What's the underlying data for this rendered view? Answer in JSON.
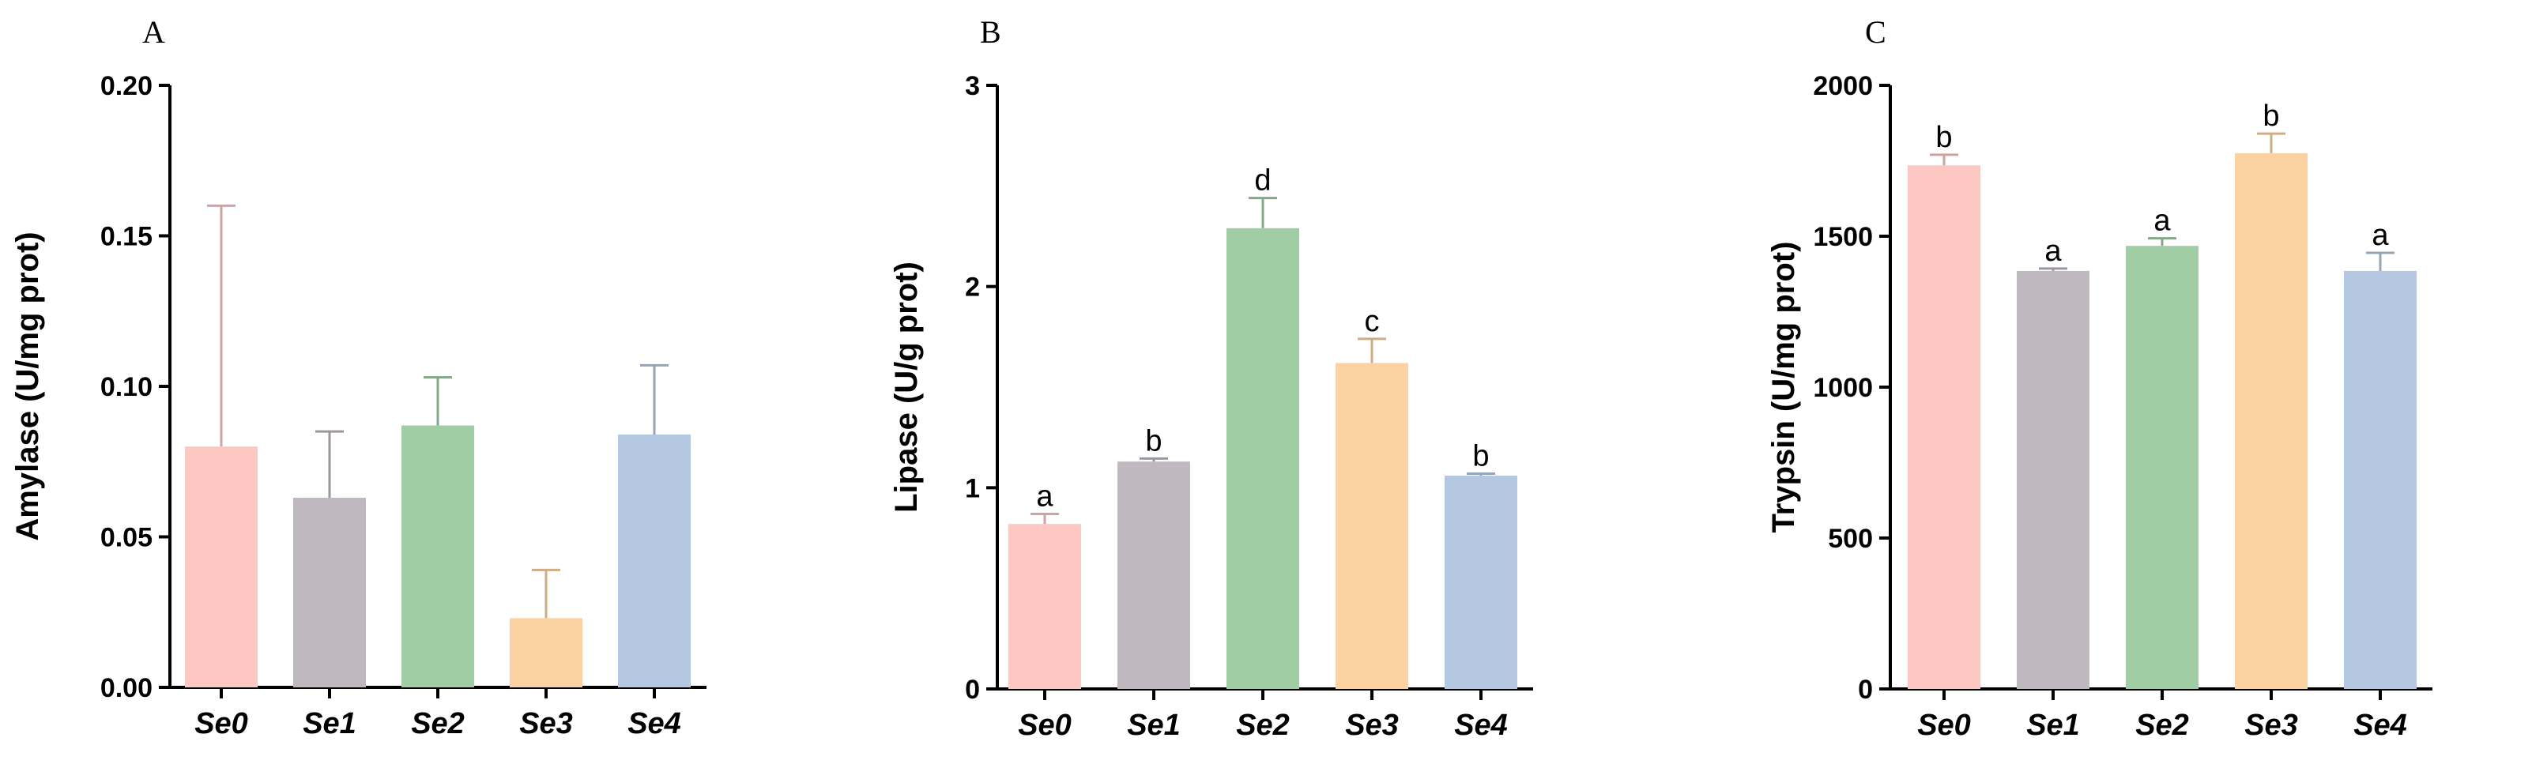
{
  "chart_data": [
    {
      "panel": "A",
      "type": "bar",
      "ylabel": "Amylase (U/mg prot)",
      "ylim": [
        0,
        0.2
      ],
      "yticks": [
        "0.00",
        "0.05",
        "0.10",
        "0.15",
        "0.20"
      ],
      "categories": [
        "Se0",
        "Se1",
        "Se2",
        "Se3",
        "Se4"
      ],
      "values": [
        0.08,
        0.063,
        0.087,
        0.023,
        0.084
      ],
      "errors": [
        0.08,
        0.022,
        0.016,
        0.016,
        0.023
      ],
      "letters": [
        "",
        "",
        "",
        "",
        ""
      ],
      "colors": [
        "#FDC7C2",
        "#C0B8BF",
        "#A1CDA5",
        "#FDD2A2",
        "#B4C8E2"
      ]
    },
    {
      "panel": "B",
      "type": "bar",
      "ylabel": "Lipase (U/g prot)",
      "ylim": [
        0,
        3
      ],
      "yticks": [
        "0",
        "1",
        "2",
        "3"
      ],
      "categories": [
        "Se0",
        "Se1",
        "Se2",
        "Se3",
        "Se4"
      ],
      "values": [
        0.82,
        1.13,
        2.29,
        1.62,
        1.06
      ],
      "errors": [
        0.05,
        0.015,
        0.15,
        0.12,
        0.01
      ],
      "letters": [
        "a",
        "b",
        "d",
        "c",
        "b"
      ],
      "colors": [
        "#FDC7C2",
        "#C0B8BF",
        "#A1CDA5",
        "#FDD2A2",
        "#B4C8E2"
      ]
    },
    {
      "panel": "C",
      "type": "bar",
      "ylabel": "Trypsin (U/mg prot)",
      "ylim": [
        0,
        2000
      ],
      "yticks": [
        "0",
        "500",
        "1000",
        "1500",
        "2000"
      ],
      "categories": [
        "Se0",
        "Se1",
        "Se2",
        "Se3",
        "Se4"
      ],
      "values": [
        1735,
        1385,
        1468,
        1775,
        1385
      ],
      "errors": [
        35,
        8,
        25,
        65,
        60
      ],
      "letters": [
        "b",
        "a",
        "a",
        "b",
        "a"
      ],
      "colors": [
        "#FDC7C2",
        "#C0B8BF",
        "#A1CDA5",
        "#FDD2A2",
        "#B4C8E2"
      ]
    }
  ]
}
